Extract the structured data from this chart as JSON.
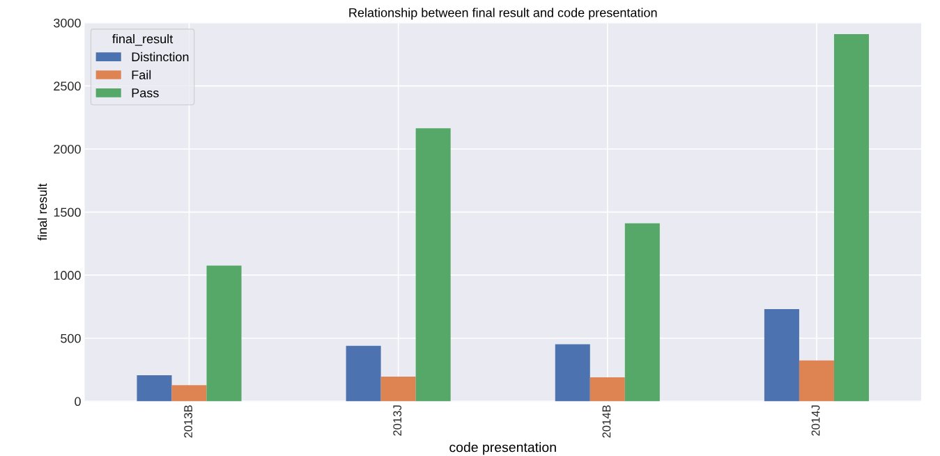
{
  "chart_data": {
    "type": "bar",
    "title": "Relationship between final result and code presentation",
    "xlabel": "code presentation",
    "ylabel": "final result",
    "legend_title": "final_result",
    "categories": [
      "2013B",
      "2013J",
      "2014B",
      "2014J"
    ],
    "series": [
      {
        "name": "Distinction",
        "color": "#4c72b0",
        "values": [
          206,
          440,
          452,
          731
        ]
      },
      {
        "name": "Fail",
        "color": "#dd8452",
        "values": [
          128,
          195,
          190,
          323
        ]
      },
      {
        "name": "Pass",
        "color": "#55a868",
        "values": [
          1076,
          2164,
          1411,
          2911
        ]
      }
    ],
    "ylim": [
      0,
      3000
    ],
    "yticks": [
      0,
      500,
      1000,
      1500,
      2000,
      2500,
      3000
    ],
    "grid": true,
    "legend": "top left"
  }
}
